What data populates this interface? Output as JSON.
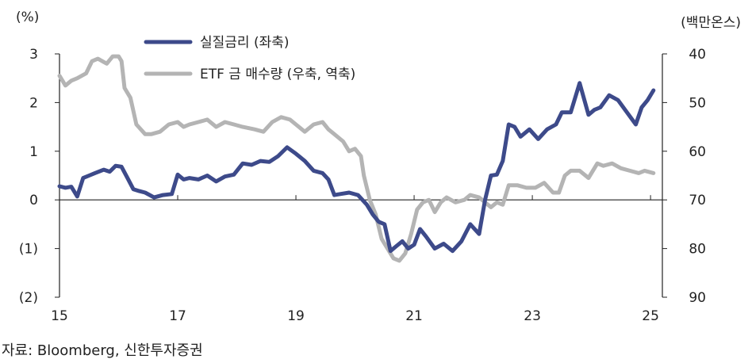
{
  "source_note": "자료: Bloomberg, 신한투자증권",
  "chart_data": {
    "type": "line",
    "left_unit": "(%)",
    "right_unit": "(백만온스)",
    "x_ticks": [
      "15",
      "17",
      "19",
      "21",
      "23",
      "25"
    ],
    "xlim": [
      2015.0,
      2025.2
    ],
    "left_ticks": [
      "3",
      "2",
      "1",
      "0",
      "(1)",
      "(2)"
    ],
    "left_ylim": [
      -2,
      3
    ],
    "right_ticks": [
      "40",
      "50",
      "60",
      "70",
      "80",
      "90"
    ],
    "right_ylim": [
      40,
      90
    ],
    "right_inverted": true,
    "grid": false,
    "legend_position": "top-center",
    "series": [
      {
        "name": "실질금리 (좌축)",
        "axis": "left",
        "color": "#3d4a8a",
        "x": [
          2015.0,
          2015.1,
          2015.2,
          2015.3,
          2015.4,
          2015.5,
          2015.6,
          2015.75,
          2015.85,
          2015.95,
          2016.05,
          2016.15,
          2016.25,
          2016.35,
          2016.45,
          2016.6,
          2016.75,
          2016.9,
          2017.0,
          2017.1,
          2017.2,
          2017.35,
          2017.5,
          2017.65,
          2017.8,
          2017.95,
          2018.1,
          2018.25,
          2018.4,
          2018.55,
          2018.7,
          2018.85,
          2019.0,
          2019.15,
          2019.3,
          2019.45,
          2019.55,
          2019.65,
          2019.75,
          2019.9,
          2020.05,
          2020.2,
          2020.3,
          2020.4,
          2020.5,
          2020.6,
          2020.7,
          2020.8,
          2020.9,
          2021.0,
          2021.1,
          2021.2,
          2021.35,
          2021.5,
          2021.65,
          2021.8,
          2021.95,
          2022.1,
          2022.2,
          2022.3,
          2022.4,
          2022.5,
          2022.6,
          2022.7,
          2022.8,
          2022.95,
          2023.1,
          2023.25,
          2023.4,
          2023.5,
          2023.65,
          2023.8,
          2023.95,
          2024.05,
          2024.15,
          2024.3,
          2024.45,
          2024.6,
          2024.75,
          2024.85,
          2024.95,
          2025.05
        ],
        "values": [
          0.28,
          0.25,
          0.27,
          0.07,
          0.45,
          0.5,
          0.55,
          0.62,
          0.58,
          0.7,
          0.68,
          0.45,
          0.22,
          0.18,
          0.15,
          0.05,
          0.1,
          0.12,
          0.52,
          0.42,
          0.45,
          0.42,
          0.5,
          0.38,
          0.48,
          0.52,
          0.75,
          0.72,
          0.8,
          0.78,
          0.9,
          1.08,
          0.95,
          0.8,
          0.6,
          0.55,
          0.42,
          0.1,
          0.12,
          0.15,
          0.1,
          -0.1,
          -0.3,
          -0.45,
          -0.5,
          -1.05,
          -0.95,
          -0.85,
          -1.0,
          -0.92,
          -0.6,
          -0.75,
          -1.0,
          -0.9,
          -1.05,
          -0.85,
          -0.5,
          -0.7,
          0.0,
          0.5,
          0.52,
          0.8,
          1.55,
          1.5,
          1.3,
          1.45,
          1.25,
          1.45,
          1.55,
          1.8,
          1.8,
          2.4,
          1.75,
          1.85,
          1.9,
          2.15,
          2.05,
          1.8,
          1.55,
          1.9,
          2.05,
          2.25
        ]
      },
      {
        "name": "ETF 금 매수량 (우축, 역축)",
        "axis": "right",
        "color": "#b4b4b4",
        "x": [
          2015.0,
          2015.1,
          2015.2,
          2015.3,
          2015.45,
          2015.55,
          2015.65,
          2015.8,
          2015.9,
          2016.0,
          2016.05,
          2016.1,
          2016.2,
          2016.3,
          2016.45,
          2016.55,
          2016.7,
          2016.85,
          2017.0,
          2017.1,
          2017.2,
          2017.35,
          2017.5,
          2017.65,
          2017.8,
          2017.95,
          2018.1,
          2018.3,
          2018.45,
          2018.6,
          2018.75,
          2018.9,
          2019.0,
          2019.15,
          2019.3,
          2019.45,
          2019.55,
          2019.65,
          2019.8,
          2019.9,
          2020.0,
          2020.1,
          2020.15,
          2020.25,
          2020.35,
          2020.45,
          2020.55,
          2020.65,
          2020.75,
          2020.85,
          2020.95,
          2021.05,
          2021.15,
          2021.25,
          2021.35,
          2021.45,
          2021.55,
          2021.7,
          2021.85,
          2021.95,
          2022.1,
          2022.2,
          2022.3,
          2022.4,
          2022.5,
          2022.6,
          2022.75,
          2022.9,
          2023.05,
          2023.2,
          2023.35,
          2023.45,
          2023.55,
          2023.65,
          2023.8,
          2023.95,
          2024.1,
          2024.2,
          2024.35,
          2024.5,
          2024.65,
          2024.8,
          2024.9,
          2025.05
        ],
        "values": [
          44.5,
          46.5,
          45.5,
          45.0,
          44.0,
          41.5,
          41.0,
          42.0,
          40.5,
          40.5,
          41.5,
          47.0,
          49.0,
          54.5,
          56.5,
          56.5,
          56.0,
          54.5,
          54.0,
          55.0,
          54.5,
          54.0,
          53.5,
          55.0,
          54.0,
          54.5,
          55.0,
          55.5,
          56.0,
          54.0,
          53.0,
          53.5,
          54.5,
          56.0,
          54.5,
          54.0,
          55.5,
          56.5,
          58.0,
          60.0,
          59.5,
          61.0,
          65.0,
          70.0,
          73.0,
          78.0,
          80.0,
          82.0,
          82.5,
          81.0,
          77.0,
          72.0,
          70.5,
          70.0,
          72.5,
          70.5,
          69.5,
          70.5,
          70.0,
          69.0,
          69.5,
          70.5,
          71.5,
          70.5,
          71.0,
          67.0,
          67.0,
          67.5,
          67.5,
          66.5,
          68.5,
          68.5,
          65.0,
          64.0,
          64.0,
          65.5,
          62.5,
          63.0,
          62.5,
          63.5,
          64.0,
          64.5,
          64.0,
          64.5
        ]
      }
    ]
  }
}
